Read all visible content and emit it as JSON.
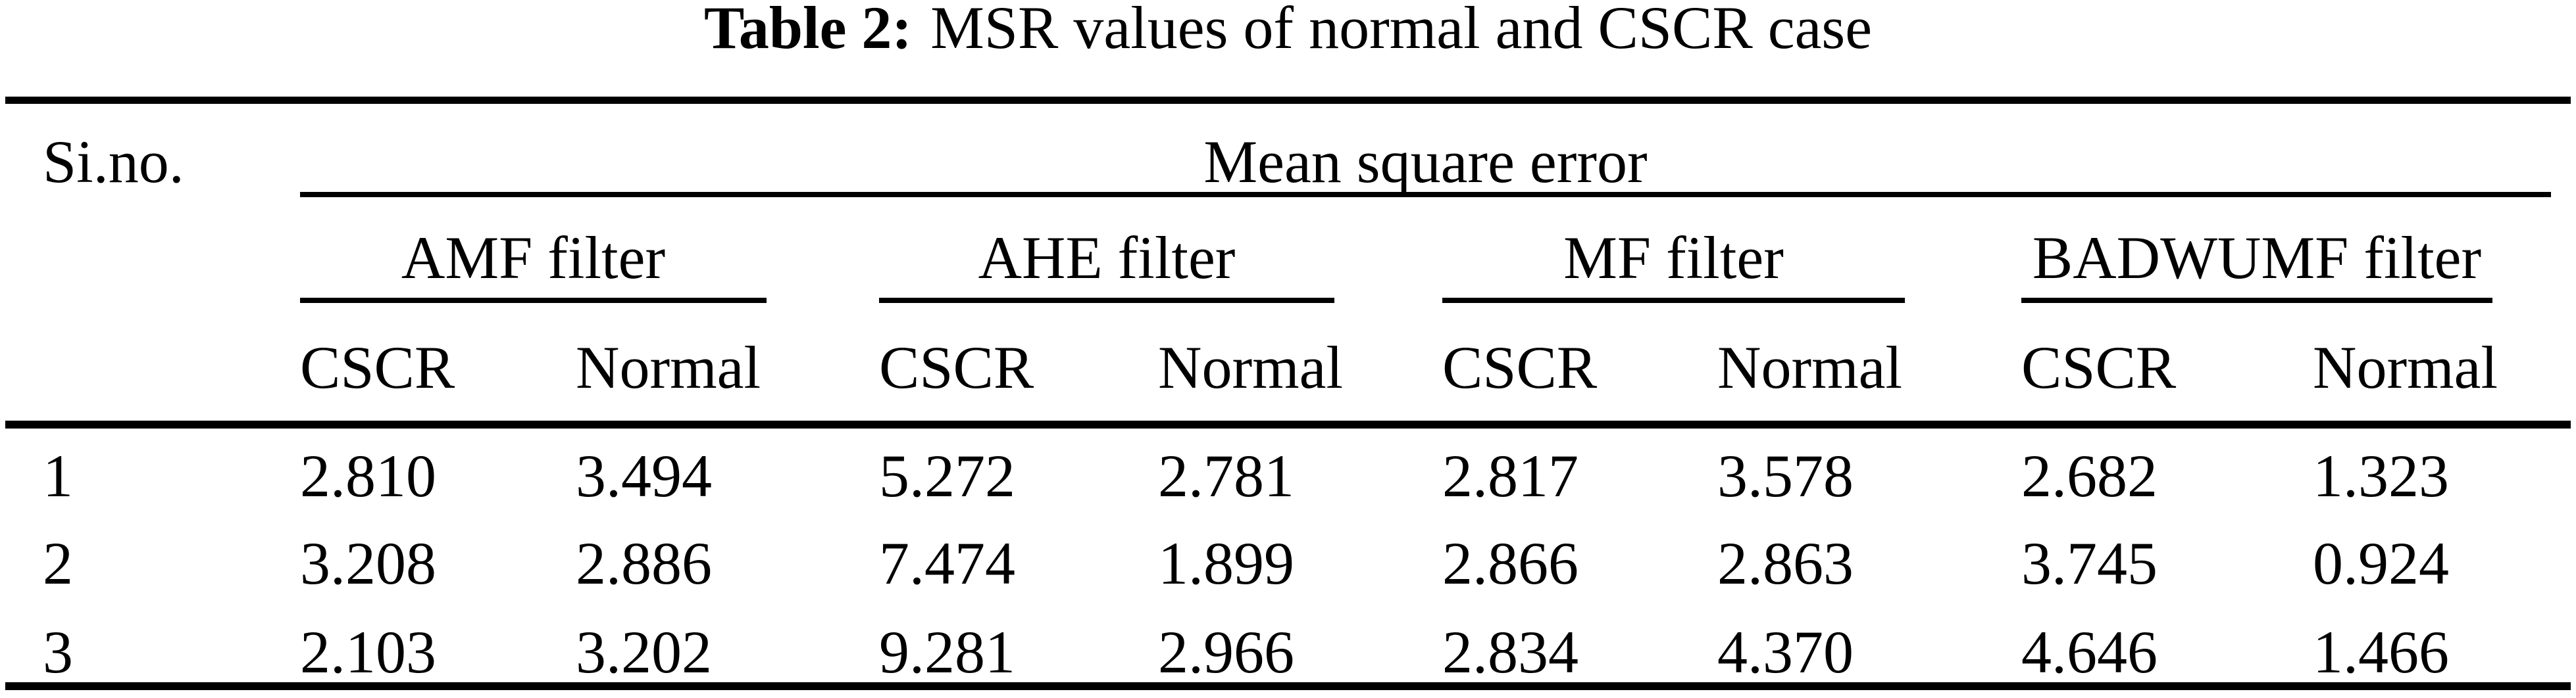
{
  "page": {
    "background": "#ffffff",
    "text_color": "#000000",
    "rule_color": "#000000"
  },
  "title": {
    "label": "Table 2:",
    "text": "MSR values of normal and CSCR case"
  },
  "table": {
    "corner_header": "Si.no.",
    "span_header": "Mean square error",
    "group_headers": [
      "AMF filter",
      "AHE filter",
      "MF filter",
      "BADWUMF filter"
    ],
    "sub_headers": [
      "CSCR",
      "Normal",
      "CSCR",
      "Normal",
      "CSCR",
      "Normal",
      "CSCR",
      "Normal"
    ],
    "rows": [
      {
        "sino": "1",
        "values": [
          "2.810",
          "3.494",
          "5.272",
          "2.781",
          "2.817",
          "3.578",
          "2.682",
          "1.323"
        ]
      },
      {
        "sino": "2",
        "values": [
          "3.208",
          "2.886",
          "7.474",
          "1.899",
          "2.866",
          "2.863",
          "3.745",
          "0.924"
        ]
      },
      {
        "sino": "3",
        "values": [
          "2.103",
          "3.202",
          "9.281",
          "2.966",
          "2.834",
          "4.370",
          "4.646",
          "1.466"
        ]
      }
    ]
  },
  "chart_data": {
    "type": "table",
    "title": "Table 2: MSR values of normal and CSCR case",
    "columns": [
      "Si.no.",
      "AMF filter CSCR",
      "AMF filter Normal",
      "AHE filter CSCR",
      "AHE filter Normal",
      "MF filter CSCR",
      "MF filter Normal",
      "BADWUMF filter CSCR",
      "BADWUMF filter Normal"
    ],
    "rows": [
      [
        1,
        2.81,
        3.494,
        5.272,
        2.781,
        2.817,
        3.578,
        2.682,
        1.323
      ],
      [
        2,
        3.208,
        2.886,
        7.474,
        1.899,
        2.866,
        2.863,
        3.745,
        0.924
      ],
      [
        3,
        2.103,
        3.202,
        9.281,
        2.966,
        2.834,
        4.37,
        4.646,
        1.466
      ]
    ]
  }
}
